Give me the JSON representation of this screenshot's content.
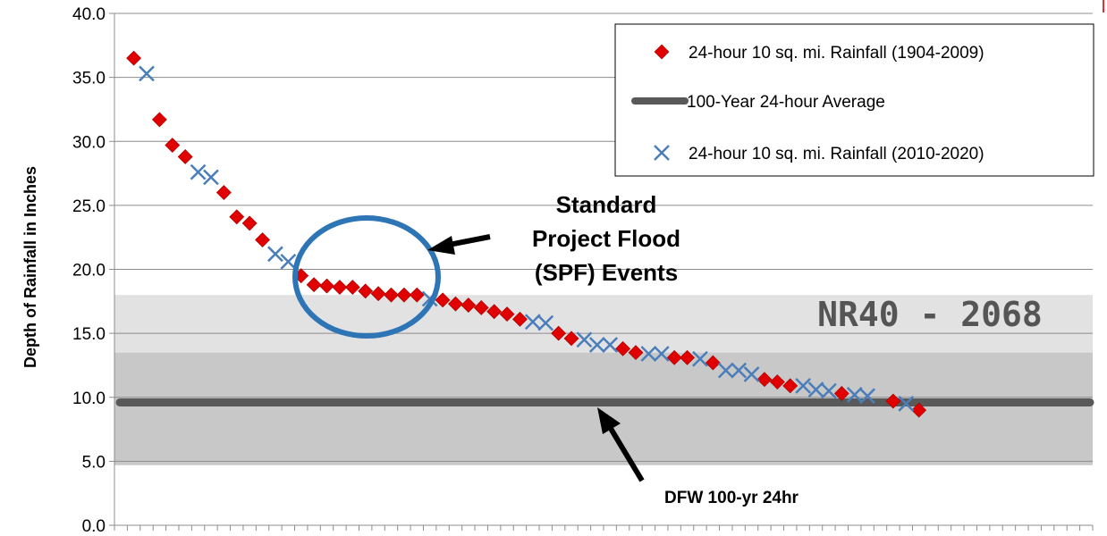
{
  "chart_data": {
    "type": "scatter",
    "ylabel": "Depth of Rainfall in Inches",
    "ylim": [
      0,
      40
    ],
    "y_ticks": [
      "0.0",
      "5.0",
      "10.0",
      "15.0",
      "20.0",
      "25.0",
      "30.0",
      "35.0",
      "40.0"
    ],
    "x_count": 76,
    "grid": "horizontal",
    "legend_position": "top-right",
    "series": [
      {
        "name": "24-hour 10 sq. mi. Rainfall (1904-2009)",
        "marker": "diamond",
        "color": "#e00000",
        "points": [
          [
            1,
            36.5
          ],
          [
            3,
            31.7
          ],
          [
            4,
            29.7
          ],
          [
            5,
            28.8
          ],
          [
            8,
            26.0
          ],
          [
            9,
            24.1
          ],
          [
            10,
            23.6
          ],
          [
            11,
            22.3
          ],
          [
            14,
            19.5
          ],
          [
            15,
            18.8
          ],
          [
            16,
            18.7
          ],
          [
            17,
            18.6
          ],
          [
            18,
            18.6
          ],
          [
            19,
            18.3
          ],
          [
            20,
            18.1
          ],
          [
            21,
            18.0
          ],
          [
            22,
            18.0
          ],
          [
            23,
            18.0
          ],
          [
            25,
            17.6
          ],
          [
            26,
            17.3
          ],
          [
            27,
            17.2
          ],
          [
            28,
            17.0
          ],
          [
            29,
            16.7
          ],
          [
            30,
            16.5
          ],
          [
            31,
            16.1
          ],
          [
            34,
            15.0
          ],
          [
            35,
            14.6
          ],
          [
            39,
            13.8
          ],
          [
            40,
            13.5
          ],
          [
            43,
            13.1
          ],
          [
            44,
            13.1
          ],
          [
            46,
            12.7
          ],
          [
            50,
            11.4
          ],
          [
            51,
            11.2
          ],
          [
            52,
            10.9
          ],
          [
            56,
            10.3
          ],
          [
            60,
            9.7
          ],
          [
            62,
            9.0
          ]
        ]
      },
      {
        "name": "24-hour 10 sq. mi. Rainfall (2010-2020)",
        "marker": "x",
        "color": "#4a7ebb",
        "points": [
          [
            2,
            35.3
          ],
          [
            6,
            27.6
          ],
          [
            7,
            27.2
          ],
          [
            12,
            21.2
          ],
          [
            13,
            20.6
          ],
          [
            24,
            17.7
          ],
          [
            32,
            15.9
          ],
          [
            33,
            15.8
          ],
          [
            36,
            14.5
          ],
          [
            37,
            14.1
          ],
          [
            38,
            14.1
          ],
          [
            41,
            13.4
          ],
          [
            42,
            13.4
          ],
          [
            45,
            13.0
          ],
          [
            47,
            12.1
          ],
          [
            48,
            12.1
          ],
          [
            49,
            11.8
          ],
          [
            53,
            10.9
          ],
          [
            54,
            10.6
          ],
          [
            55,
            10.5
          ],
          [
            57,
            10.2
          ],
          [
            58,
            10.1
          ],
          [
            61,
            9.5
          ]
        ]
      },
      {
        "name": "100-Year 24-hour Average",
        "type": "line",
        "color": "#595959",
        "value": 9.6
      }
    ],
    "bands": [
      {
        "from": 4.7,
        "to": 13.5,
        "color": "#c8c8c8"
      },
      {
        "from": 13.5,
        "to": 18.0,
        "color": "#e2e2e2"
      }
    ],
    "annotations": {
      "spf": [
        "Standard",
        "Project Flood",
        "(SPF) Events"
      ],
      "dfw": "DFW 100-yr 24hr",
      "band_label": "NR40 - 2068"
    }
  }
}
